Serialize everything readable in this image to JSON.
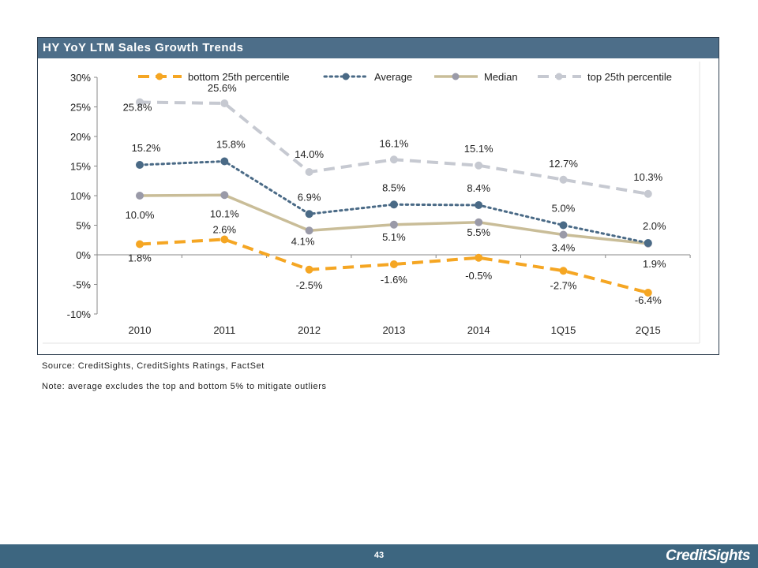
{
  "title": "HY YoY LTM Sales Growth Trends",
  "source_note": "Source: CreditSights, CreditSights Ratings, FactSet",
  "average_note": "Note: average excludes the top and bottom 5% to mitigate outliers",
  "page_number": "43",
  "logo_text": "CreditSights",
  "colors": {
    "header_bg": "#4d6e89",
    "footer_bg": "#3d6680",
    "bottom": "#f5a623",
    "average": "#4a6a86",
    "median": "#c9bd98",
    "median_marker": "#9a9aa8",
    "top": "#c6c9d1"
  },
  "chart_data": {
    "type": "line",
    "categories": [
      "2010",
      "2011",
      "2012",
      "2013",
      "2014",
      "1Q15",
      "2Q15"
    ],
    "ylim": [
      -10,
      30
    ],
    "yticks": [
      30,
      25,
      20,
      15,
      10,
      5,
      0,
      -5,
      -10
    ],
    "ytick_labels": [
      "30%",
      "25%",
      "20%",
      "15%",
      "10%",
      "5%",
      "0%",
      "-5%",
      "-10%"
    ],
    "legend_position": "top",
    "grid": false,
    "series": [
      {
        "name": "bottom 25th percentile",
        "style": "dashed",
        "color": "#f5a623",
        "values": [
          1.8,
          2.6,
          -2.5,
          -1.6,
          -0.5,
          -2.7,
          -6.4
        ],
        "labels": [
          "1.8%",
          "2.6%",
          "-2.5%",
          "-1.6%",
          "-0.5%",
          "-2.7%",
          "-6.4%"
        ]
      },
      {
        "name": "Average",
        "style": "dotted",
        "color": "#4a6a86",
        "values": [
          15.2,
          15.8,
          6.9,
          8.5,
          8.4,
          5.0,
          2.0
        ],
        "labels": [
          "15.2%",
          "15.8%",
          "6.9%",
          "8.5%",
          "8.4%",
          "5.0%",
          "2.0%"
        ]
      },
      {
        "name": "Median",
        "style": "solid",
        "color": "#c9bd98",
        "values": [
          10.0,
          10.1,
          4.1,
          5.1,
          5.5,
          3.4,
          1.9
        ],
        "labels": [
          "10.0%",
          "10.1%",
          "4.1%",
          "5.1%",
          "5.5%",
          "3.4%",
          "1.9%"
        ]
      },
      {
        "name": "top 25th percentile",
        "style": "dashed",
        "color": "#c6c9d1",
        "values": [
          25.8,
          25.6,
          14.0,
          16.1,
          15.1,
          12.7,
          10.3
        ],
        "labels": [
          "25.8%",
          "25.6%",
          "14.0%",
          "16.1%",
          "15.1%",
          "12.7%",
          "10.3%"
        ]
      }
    ]
  }
}
